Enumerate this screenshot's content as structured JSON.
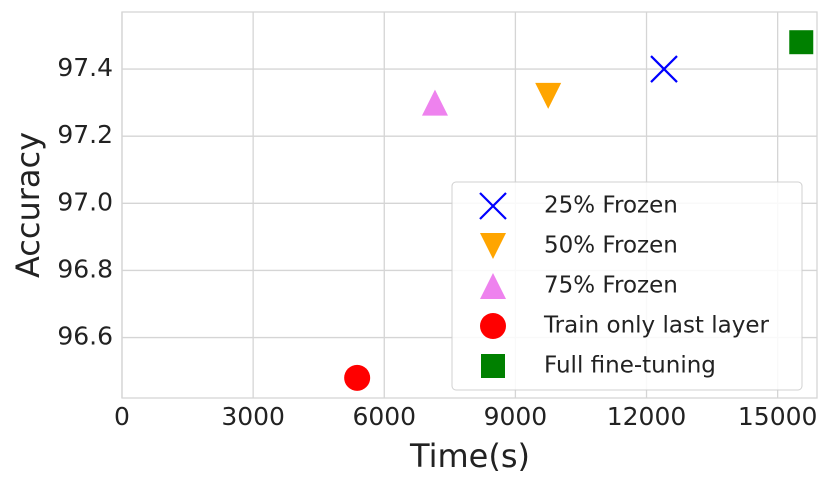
{
  "chart_data": {
    "type": "scatter",
    "x_label": "Time(s)",
    "y_label": "Accuracy",
    "xlim": [
      0,
      15900
    ],
    "xticks": [
      0,
      3000,
      6000,
      9000,
      12000,
      15000
    ],
    "ylim": [
      96.42,
      97.57
    ],
    "yticks": [
      {
        "value": 96.6,
        "label": "96.6"
      },
      {
        "value": 96.8,
        "label": "96.8"
      },
      {
        "value": 97.0,
        "label": "97.0"
      },
      {
        "value": 97.2,
        "label": "97.2"
      },
      {
        "value": 97.4,
        "label": "97.4"
      }
    ],
    "grid": true,
    "legend": "lower right",
    "series": [
      {
        "name": "25% Frozen",
        "color": "#0000ff",
        "marker": "x",
        "x": [
          12400
        ],
        "values": [
          97.4
        ]
      },
      {
        "name": "50% Frozen",
        "color": "#ffa500",
        "marker": "v",
        "x": [
          9750
        ],
        "values": [
          97.32
        ]
      },
      {
        "name": "75% Frozen",
        "color": "#ee82ee",
        "marker": "^",
        "x": [
          7160
        ],
        "values": [
          97.3
        ]
      },
      {
        "name": "Train only last layer",
        "color": "#ff0000",
        "marker": "o",
        "x": [
          5380
        ],
        "values": [
          96.48
        ]
      },
      {
        "name": "Full fine-tuning",
        "color": "#008000",
        "marker": "s",
        "x": [
          15540
        ],
        "values": [
          97.48
        ]
      }
    ]
  }
}
